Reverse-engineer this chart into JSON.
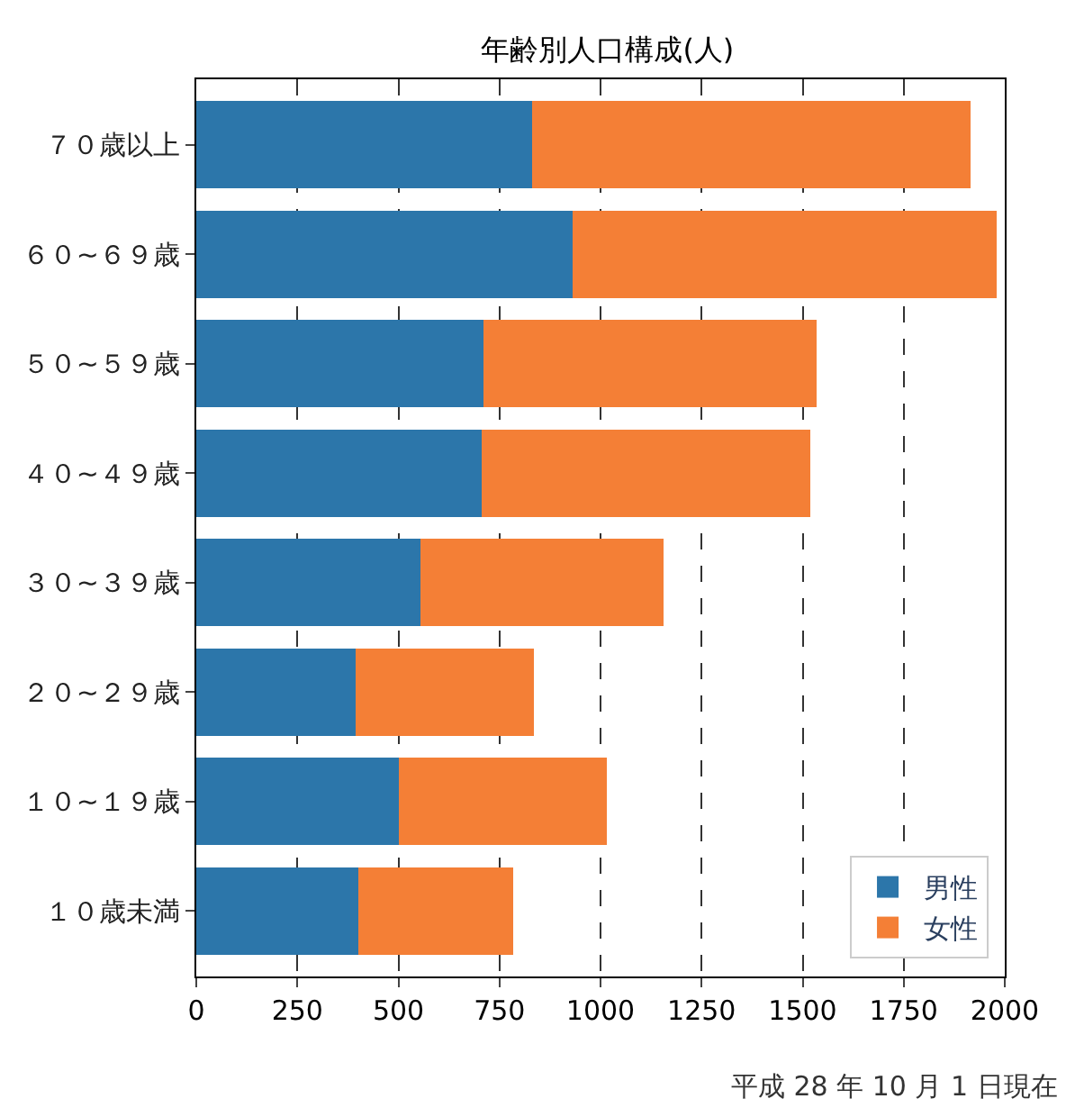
{
  "chart_data": {
    "type": "bar",
    "orientation": "horizontal",
    "stacked": true,
    "title": "年齢別人口構成(人)",
    "categories": [
      "７０歳以上",
      "６０~６９歳",
      "５０~５９歳",
      "４０~４９歳",
      "３０~３９歳",
      "２０~２９歳",
      "１０~１９歳",
      "１０歳未満"
    ],
    "series": [
      {
        "name": "男性",
        "color": "#2c76aa",
        "values": [
          830,
          930,
          710,
          705,
          555,
          395,
          500,
          400
        ]
      },
      {
        "name": "女性",
        "color": "#f47f36",
        "values": [
          1085,
          1050,
          825,
          815,
          600,
          440,
          515,
          385
        ]
      }
    ],
    "xlim": [
      0,
      2000
    ],
    "xticks": [
      0,
      250,
      500,
      750,
      1000,
      1250,
      1500,
      1750,
      2000
    ],
    "grid": "x",
    "line_style": "dashed",
    "legend": "bottom right",
    "annotations": [
      "平成 28 年 10 月 1 日現在"
    ]
  }
}
